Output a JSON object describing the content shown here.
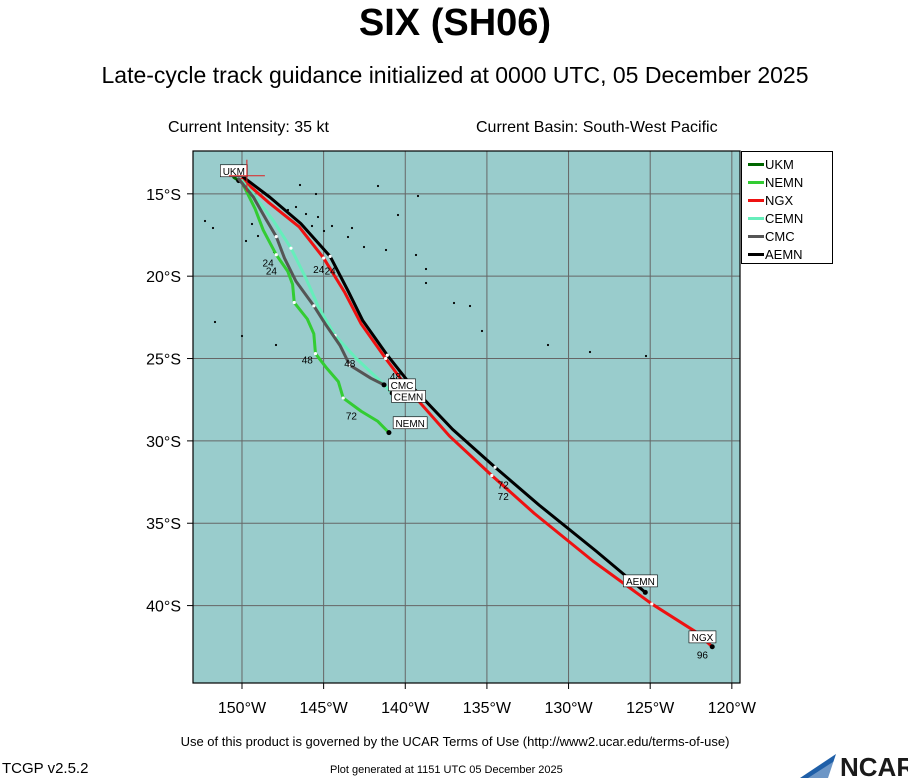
{
  "header": {
    "title": "SIX (SH06)",
    "subtitle": "Late-cycle track guidance initialized at 0000 UTC, 05 December 2025",
    "intensity": "Current Intensity: 35 kt",
    "basin": "Current Basin: South-West Pacific"
  },
  "footer": {
    "terms": "Use of this product is governed by the UCAR Terms of Use (http://www2.ucar.edu/terms-of-use)",
    "version": "TCGP v2.5.2",
    "generated": "Plot generated at 1151 UTC   05 December 2025",
    "logo_text": "NCAR"
  },
  "map": {
    "background_color": "#99cccc",
    "grid_color": "#666666",
    "lon_range": [
      -153,
      -119.5
    ],
    "lat_range": [
      -44.7,
      -12.4
    ],
    "lon_ticks": [
      {
        "v": -150,
        "label": "150°W"
      },
      {
        "v": -145,
        "label": "145°W"
      },
      {
        "v": -140,
        "label": "140°W"
      },
      {
        "v": -135,
        "label": "135°W"
      },
      {
        "v": -130,
        "label": "130°W"
      },
      {
        "v": -125,
        "label": "125°W"
      },
      {
        "v": -120,
        "label": "120°W"
      }
    ],
    "lat_ticks": [
      {
        "v": -15,
        "label": "15°S"
      },
      {
        "v": -20,
        "label": "20°S"
      },
      {
        "v": -25,
        "label": "25°S"
      },
      {
        "v": -30,
        "label": "30°S"
      },
      {
        "v": -35,
        "label": "35°S"
      },
      {
        "v": -40,
        "label": "40°S"
      }
    ],
    "current_position": [
      -149.7,
      -13.9
    ]
  },
  "chart_data": {
    "type": "track-map",
    "models": [
      {
        "name": "UKM",
        "color": "#006600",
        "points": [
          [
            -150.5,
            -14.0
          ],
          [
            -150.2,
            -14.2
          ]
        ],
        "end_label": "UKM",
        "end_label_at": [
          -150.5,
          -13.6
        ],
        "hour_labels": []
      },
      {
        "name": "NEMN",
        "color": "#33cc33",
        "points": [
          [
            -150.0,
            -14.3
          ],
          [
            -149.2,
            -15.9
          ],
          [
            -148.7,
            -17.2
          ],
          [
            -147.9,
            -18.7
          ],
          [
            -147.2,
            -19.7
          ],
          [
            -146.9,
            -20.5
          ],
          [
            -146.8,
            -21.6
          ],
          [
            -146.0,
            -22.6
          ],
          [
            -145.6,
            -23.5
          ],
          [
            -145.5,
            -24.7
          ],
          [
            -144.8,
            -25.6
          ],
          [
            -144.1,
            -26.4
          ],
          [
            -143.8,
            -27.4
          ],
          [
            -142.7,
            -28.2
          ],
          [
            -141.7,
            -28.8
          ],
          [
            -141.0,
            -29.5
          ]
        ],
        "end_label": "NEMN",
        "end_label_at": [
          -139.7,
          -28.9
        ],
        "hour_labels": [
          {
            "h": "24",
            "at": [
              -148.2,
              -19.9
            ]
          },
          {
            "h": "48",
            "at": [
              -146.0,
              -25.3
            ]
          },
          {
            "h": "72",
            "at": [
              -143.3,
              -28.7
            ]
          }
        ]
      },
      {
        "name": "NGX",
        "color": "#ee1111",
        "points": [
          [
            -150.0,
            -14.1
          ],
          [
            -148.4,
            -15.5
          ],
          [
            -146.5,
            -17.0
          ],
          [
            -145.0,
            -18.9
          ],
          [
            -143.7,
            -21.0
          ],
          [
            -142.7,
            -22.9
          ],
          [
            -141.2,
            -25.0
          ],
          [
            -139.7,
            -27.0
          ],
          [
            -137.3,
            -29.7
          ],
          [
            -134.7,
            -32.1
          ],
          [
            -132.1,
            -34.4
          ],
          [
            -128.5,
            -37.3
          ],
          [
            -124.9,
            -39.9
          ],
          [
            -122.2,
            -41.6
          ],
          [
            -121.2,
            -42.5
          ]
        ],
        "end_label": "NGX",
        "end_label_at": [
          -121.8,
          -41.9
        ],
        "hour_labels": [
          {
            "h": "24",
            "at": [
              -145.3,
              -19.8
            ]
          },
          {
            "h": "72",
            "at": [
              -134.0,
              -33.6
            ]
          },
          {
            "h": "96",
            "at": [
              -121.8,
              -43.2
            ]
          }
        ]
      },
      {
        "name": "CEMN",
        "color": "#66eebb",
        "points": [
          [
            -150.0,
            -14.2
          ],
          [
            -149.1,
            -15.3
          ],
          [
            -148.1,
            -16.6
          ],
          [
            -147.0,
            -18.3
          ],
          [
            -146.1,
            -20.1
          ],
          [
            -145.3,
            -21.9
          ],
          [
            -144.3,
            -23.6
          ],
          [
            -143.0,
            -25.0
          ],
          [
            -141.6,
            -26.3
          ],
          [
            -140.8,
            -27.1
          ]
        ],
        "end_label": "CEMN",
        "end_label_at": [
          -139.8,
          -27.3
        ],
        "hour_labels": [
          {
            "h": "48",
            "at": [
              -140.6,
              -26.8
            ]
          }
        ]
      },
      {
        "name": "CMC",
        "color": "#555555",
        "points": [
          [
            -150.2,
            -14.1
          ],
          [
            -149.3,
            -15.2
          ],
          [
            -148.5,
            -16.6
          ],
          [
            -147.9,
            -17.6
          ],
          [
            -147.4,
            -18.9
          ],
          [
            -146.7,
            -20.3
          ],
          [
            -145.6,
            -21.8
          ],
          [
            -144.9,
            -22.9
          ],
          [
            -144.0,
            -24.2
          ],
          [
            -143.4,
            -25.4
          ],
          [
            -142.1,
            -26.2
          ],
          [
            -141.3,
            -26.6
          ]
        ],
        "end_label": "CMC",
        "end_label_at": [
          -140.2,
          -26.6
        ],
        "hour_labels": [
          {
            "h": "24",
            "at": [
              -148.4,
              -19.4
            ]
          },
          {
            "h": "48",
            "at": [
              -143.4,
              -25.5
            ]
          },
          {
            "h": "48",
            "at": [
              -140.6,
              -26.3
            ]
          }
        ]
      },
      {
        "name": "AEMN",
        "color": "#000000",
        "points": [
          [
            -149.9,
            -14.0
          ],
          [
            -148.3,
            -15.2
          ],
          [
            -146.4,
            -16.8
          ],
          [
            -144.6,
            -18.8
          ],
          [
            -143.5,
            -20.9
          ],
          [
            -142.6,
            -22.7
          ],
          [
            -141.1,
            -24.8
          ],
          [
            -139.5,
            -26.8
          ],
          [
            -137.1,
            -29.3
          ],
          [
            -134.5,
            -31.6
          ],
          [
            -131.8,
            -33.9
          ],
          [
            -128.3,
            -36.7
          ],
          [
            -125.3,
            -39.2
          ]
        ],
        "end_label": "AEMN",
        "end_label_at": [
          -125.6,
          -38.5
        ],
        "hour_labels": [
          {
            "h": "24",
            "at": [
              -144.6,
              -19.9
            ]
          },
          {
            "h": "72",
            "at": [
              -134.0,
              -32.9
            ]
          }
        ]
      }
    ],
    "legend": [
      "UKM",
      "NEMN",
      "NGX",
      "CEMN",
      "CMC",
      "AEMN"
    ]
  }
}
